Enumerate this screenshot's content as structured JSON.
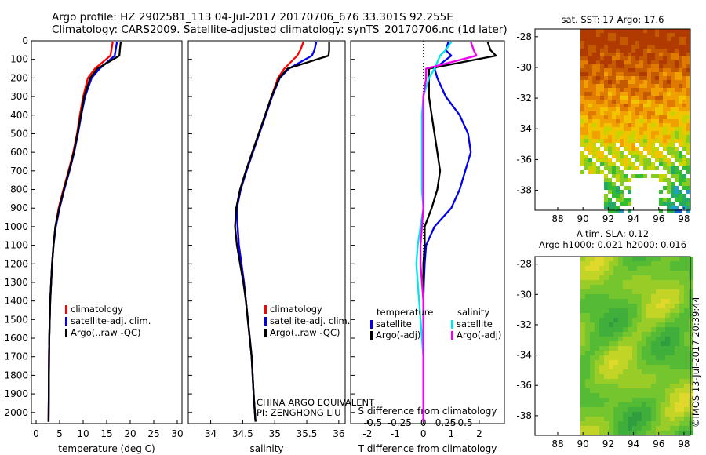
{
  "header": {
    "line1": "Argo profile: HZ 2902581_113 04-Jul-2017 20170706_676 33.301S 92.255E",
    "line2": "Climatology: CARS2009. Satellite-adjusted climatology: synTS_20170706.nc (1d later)"
  },
  "colors": {
    "climatology": "#ff0000",
    "satellite": "#0000ee",
    "argo": "#000000",
    "sal_sat": "#00e5ee",
    "sal_argo": "#ee00ee"
  },
  "chart_data": [
    {
      "type": "line",
      "id": "temperature",
      "xlabel": "temperature (deg C)",
      "xlim": [
        -1,
        31
      ],
      "ylim": [
        2060,
        0
      ],
      "xticks": [
        "0",
        "5",
        "10",
        "15",
        "20",
        "25",
        "30"
      ],
      "xticks_val": [
        0,
        5,
        10,
        15,
        20,
        25,
        30
      ],
      "yticks": [
        "0",
        "100",
        "200",
        "300",
        "400",
        "500",
        "600",
        "700",
        "800",
        "900",
        "1000",
        "1100",
        "1200",
        "1300",
        "1400",
        "1500",
        "1600",
        "1700",
        "1800",
        "1900",
        "2000"
      ],
      "yticks_val": [
        0,
        100,
        200,
        300,
        400,
        500,
        600,
        700,
        800,
        900,
        1000,
        1100,
        1200,
        1300,
        1400,
        1500,
        1600,
        1700,
        1800,
        1900,
        2000
      ],
      "legend": [
        "climatology",
        "satellite-adj. clim.",
        "Argo(..raw -QC)"
      ],
      "series": [
        {
          "name": "climatology",
          "color": "#ff0000",
          "x": [
            16.3,
            16.0,
            15.8,
            12.5,
            11.0,
            10.0,
            9.3,
            8.7,
            7.9,
            6.9,
            5.8,
            4.8,
            4.1,
            3.7,
            3.4,
            3.2,
            3.0,
            2.9,
            2.8,
            2.75,
            2.7,
            2.65
          ],
          "y": [
            5,
            50,
            80,
            150,
            200,
            300,
            400,
            500,
            600,
            700,
            800,
            900,
            1000,
            1100,
            1200,
            1300,
            1400,
            1500,
            1600,
            1700,
            1900,
            2050
          ]
        },
        {
          "name": "satellite-adj. clim.",
          "color": "#0000ee",
          "x": [
            17.2,
            16.9,
            16.7,
            13.5,
            11.8,
            10.4,
            9.6,
            8.9,
            8.1,
            7.1,
            6.0,
            5.0,
            4.2,
            3.7,
            3.4,
            3.2,
            3.0,
            2.9,
            2.8,
            2.75,
            2.7,
            2.65
          ],
          "y": [
            5,
            50,
            80,
            150,
            200,
            300,
            400,
            500,
            600,
            700,
            800,
            900,
            1000,
            1100,
            1200,
            1300,
            1400,
            1500,
            1600,
            1700,
            1900,
            2050
          ]
        },
        {
          "name": "Argo(..raw -QC)",
          "color": "#000000",
          "x": [
            18.0,
            17.8,
            17.7,
            13.0,
            11.5,
            10.2,
            9.5,
            8.8,
            8.0,
            7.0,
            5.9,
            4.9,
            4.1,
            3.7,
            3.4,
            3.2,
            3.0,
            2.9,
            2.8,
            2.75,
            2.7,
            2.65
          ],
          "y": [
            5,
            50,
            80,
            150,
            200,
            300,
            400,
            500,
            600,
            700,
            800,
            900,
            1000,
            1100,
            1200,
            1300,
            1400,
            1500,
            1600,
            1700,
            1900,
            2050
          ]
        }
      ]
    },
    {
      "type": "line",
      "id": "salinity",
      "xlabel": "salinity",
      "xlim": [
        33.65,
        36.1
      ],
      "ylim": [
        2060,
        0
      ],
      "xticks": [
        "34",
        "34.5",
        "35",
        "35.5",
        "36"
      ],
      "xticks_val": [
        34,
        34.5,
        35,
        35.5,
        36
      ],
      "legend": [
        "climatology",
        "satellite-adj. clim.",
        "Argo(..raw -QC)"
      ],
      "annotations": [
        "CHINA ARGO EQUIVALENT",
        "PI: ZENGHONG LIU"
      ],
      "series": [
        {
          "name": "climatology",
          "color": "#ff0000",
          "x": [
            35.45,
            35.4,
            35.35,
            35.15,
            35.05,
            34.95,
            34.85,
            34.75,
            34.65,
            34.55,
            34.46,
            34.4,
            34.42,
            34.44,
            34.48,
            34.52,
            34.55,
            34.58,
            34.61,
            34.64,
            34.67,
            34.7
          ],
          "y": [
            5,
            50,
            80,
            150,
            200,
            300,
            400,
            500,
            600,
            700,
            800,
            900,
            1000,
            1100,
            1200,
            1300,
            1400,
            1500,
            1600,
            1700,
            1900,
            2050
          ]
        },
        {
          "name": "satellite-adj. clim.",
          "color": "#0000ee",
          "x": [
            35.65,
            35.62,
            35.58,
            35.22,
            35.08,
            34.96,
            34.86,
            34.76,
            34.66,
            34.56,
            34.47,
            34.41,
            34.42,
            34.44,
            34.48,
            34.52,
            34.55,
            34.58,
            34.61,
            34.64,
            34.67,
            34.7
          ],
          "y": [
            5,
            50,
            80,
            150,
            200,
            300,
            400,
            500,
            600,
            700,
            800,
            900,
            1000,
            1100,
            1200,
            1300,
            1400,
            1500,
            1600,
            1700,
            1900,
            2050
          ]
        },
        {
          "name": "Argo(..raw -QC)",
          "color": "#000000",
          "x": [
            35.85,
            35.85,
            35.84,
            35.2,
            35.07,
            34.95,
            34.85,
            34.75,
            34.65,
            34.55,
            34.46,
            34.4,
            34.38,
            34.41,
            34.46,
            34.51,
            34.55,
            34.58,
            34.61,
            34.64,
            34.67,
            34.7
          ],
          "y": [
            5,
            50,
            80,
            150,
            200,
            300,
            400,
            500,
            600,
            700,
            800,
            900,
            1000,
            1100,
            1200,
            1300,
            1400,
            1500,
            1600,
            1700,
            1900,
            2050
          ]
        }
      ]
    },
    {
      "type": "line",
      "id": "difference",
      "xlabel": "T difference from climatology",
      "xlabel2": "S difference from climatology",
      "xlim": [
        -2.6,
        2.9
      ],
      "ylim": [
        2060,
        0
      ],
      "xticks": [
        "-2",
        "-1",
        "0",
        "1",
        "2"
      ],
      "xticks_val": [
        -2,
        -1,
        0,
        1,
        2
      ],
      "xticks2": [
        "-0.5",
        "-0.25",
        "0",
        "0.25",
        "0.5"
      ],
      "xticks2_val": [
        -1.8,
        -0.85,
        0,
        0.8,
        1.5
      ],
      "legend_titles": [
        "temperature",
        "salinity"
      ],
      "legend": [
        "satellite",
        "Argo(-adj)",
        "satellite",
        "Argo(-adj)"
      ],
      "series": [
        {
          "name": "temperature satellite",
          "color": "#0000ee",
          "x": [
            0.9,
            0.8,
            1.0,
            0.4,
            0.5,
            0.8,
            1.3,
            1.6,
            1.7,
            1.5,
            1.3,
            1.0,
            0.4,
            0.1,
            0.05,
            0.02,
            0.0,
            0.0,
            0.0,
            0.0,
            0.0,
            0.0
          ],
          "y": [
            5,
            50,
            80,
            150,
            200,
            300,
            400,
            500,
            600,
            700,
            800,
            900,
            1000,
            1100,
            1200,
            1300,
            1400,
            1500,
            1600,
            1700,
            1900,
            2050
          ]
        },
        {
          "name": "temperature Argo(-adj)",
          "color": "#000000",
          "x": [
            2.3,
            2.4,
            2.6,
            0.2,
            0.2,
            0.2,
            0.3,
            0.4,
            0.5,
            0.6,
            0.5,
            0.3,
            0.05,
            0.05,
            0.0,
            0.0,
            0.0,
            0.0,
            0.0,
            0.0,
            0.0,
            0.0
          ],
          "y": [
            5,
            50,
            80,
            150,
            200,
            300,
            400,
            500,
            600,
            700,
            800,
            900,
            1000,
            1100,
            1200,
            1300,
            1400,
            1500,
            1600,
            1700,
            1900,
            2050
          ]
        },
        {
          "name": "salinity satellite",
          "color": "#00e5ee",
          "x": [
            1.0,
            0.8,
            0.6,
            0.4,
            0.2,
            0.0,
            -0.05,
            -0.05,
            -0.05,
            -0.05,
            -0.05,
            0.0,
            -0.1,
            -0.2,
            -0.25,
            -0.2,
            -0.15,
            -0.1,
            -0.05,
            0.0,
            0.0,
            0.0
          ],
          "y": [
            5,
            50,
            80,
            150,
            200,
            300,
            400,
            500,
            600,
            700,
            800,
            900,
            1000,
            1100,
            1200,
            1300,
            1400,
            1500,
            1600,
            1700,
            1900,
            2050
          ]
        },
        {
          "name": "salinity Argo(-adj)",
          "color": "#ee00ee",
          "x": [
            1.7,
            1.8,
            1.9,
            0.1,
            0.1,
            0.0,
            0.0,
            0.0,
            0.0,
            0.0,
            0.0,
            0.0,
            -0.05,
            -0.1,
            -0.1,
            -0.05,
            0.0,
            0.0,
            0.0,
            0.0,
            0.0,
            0.0
          ],
          "y": [
            5,
            50,
            80,
            150,
            200,
            300,
            400,
            500,
            600,
            700,
            800,
            900,
            1000,
            1100,
            1200,
            1300,
            1400,
            1500,
            1600,
            1700,
            1900,
            2050
          ]
        }
      ]
    }
  ],
  "maps": [
    {
      "id": "sst",
      "title": "sat. SST: 17 Argo: 17.6",
      "xticks": [
        "88",
        "90",
        "92",
        "94",
        "96",
        "98"
      ],
      "xticks_val": [
        88,
        90,
        92,
        94,
        96,
        98
      ],
      "yticks": [
        "-28",
        "-30",
        "-32",
        "-34",
        "-36",
        "-38"
      ],
      "yticks_val": [
        -28,
        -30,
        -32,
        -34,
        -36,
        -38
      ],
      "xlim": [
        86.2,
        98.5
      ],
      "ylim": [
        -27.5,
        -39.3
      ]
    },
    {
      "id": "sla",
      "title1": "Altim. SLA: 0.12",
      "title2": "Argo h1000: 0.021 h2000: 0.016",
      "xticks": [
        "88",
        "90",
        "92",
        "94",
        "96",
        "98"
      ],
      "xticks_val": [
        88,
        90,
        92,
        94,
        96,
        98
      ],
      "yticks": [
        "-28",
        "-30",
        "-32",
        "-34",
        "-36",
        "-38"
      ],
      "yticks_val": [
        -28,
        -30,
        -32,
        -34,
        -36,
        -38
      ],
      "xlim": [
        86.2,
        98.5
      ],
      "ylim": [
        -27.5,
        -39.3
      ]
    }
  ],
  "credit": "©IMOS 13-Jul-2017 20:39:44"
}
